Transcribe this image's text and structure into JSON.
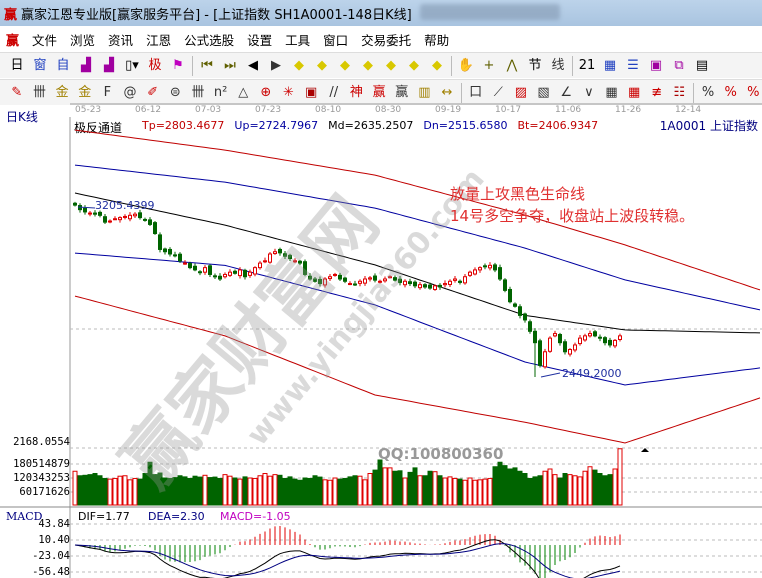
{
  "window": {
    "logo": "赢",
    "title": "赢家江恩专业版[赢家服务平台] - [上证指数  SH1A0001-148日K线]"
  },
  "menu": [
    "文件",
    "浏览",
    "资讯",
    "江恩",
    "公式选股",
    "设置",
    "工具",
    "窗口",
    "交易委托",
    "帮助"
  ],
  "toolbar1": [
    {
      "icon": "period-day",
      "glyph": "日▾"
    },
    {
      "icon": "window",
      "glyph": "窗"
    },
    {
      "icon": "self",
      "glyph": "自"
    },
    {
      "icon": "chart-3",
      "glyph": "▟"
    },
    {
      "icon": "chart-9",
      "glyph": "▟"
    },
    {
      "icon": "candle",
      "glyph": "▯▾"
    },
    {
      "icon": "extreme",
      "glyph": "极"
    },
    {
      "icon": "flag",
      "glyph": "⚑"
    },
    {
      "icon": "first",
      "glyph": "⏮"
    },
    {
      "icon": "last",
      "glyph": "⏭"
    },
    {
      "icon": "left",
      "glyph": "◀"
    },
    {
      "icon": "right",
      "glyph": "▶"
    },
    {
      "icon": "diamond-left",
      "glyph": "◆"
    },
    {
      "icon": "diamond-right",
      "glyph": "◆"
    },
    {
      "icon": "diamond-h",
      "glyph": "◆"
    },
    {
      "icon": "diamond-x",
      "glyph": "◆"
    },
    {
      "icon": "diamond-a",
      "glyph": "◆"
    },
    {
      "icon": "diamond-b",
      "glyph": "◆"
    },
    {
      "icon": "diamond-c",
      "glyph": "◆"
    },
    {
      "icon": "hand",
      "glyph": "✋"
    },
    {
      "icon": "crosshair",
      "glyph": "+"
    },
    {
      "icon": "line-tool",
      "glyph": "⋀"
    },
    {
      "icon": "section",
      "glyph": "节"
    },
    {
      "icon": "line-text",
      "glyph": "线"
    },
    {
      "icon": "calendar",
      "glyph": "21"
    },
    {
      "icon": "calculator",
      "glyph": "▦"
    },
    {
      "icon": "notes",
      "glyph": "☰"
    },
    {
      "icon": "save",
      "glyph": "▣"
    },
    {
      "icon": "network",
      "glyph": "⧉"
    },
    {
      "icon": "computer",
      "glyph": "▤"
    }
  ],
  "toolbar2": [
    {
      "icon": "pen",
      "glyph": "✎"
    },
    {
      "icon": "bars",
      "glyph": "卌"
    },
    {
      "icon": "gold-1",
      "glyph": "金"
    },
    {
      "icon": "gold-2",
      "glyph": "金"
    },
    {
      "icon": "f-line",
      "glyph": "F"
    },
    {
      "icon": "spiral",
      "glyph": "@"
    },
    {
      "icon": "ruler-pen",
      "glyph": "✐"
    },
    {
      "icon": "circle-grid",
      "glyph": "⊜"
    },
    {
      "icon": "bars-2",
      "glyph": "卌"
    },
    {
      "icon": "n2",
      "glyph": "n²"
    },
    {
      "icon": "triangle",
      "glyph": "△"
    },
    {
      "icon": "target",
      "glyph": "⊕"
    },
    {
      "icon": "star",
      "glyph": "✳"
    },
    {
      "icon": "square-grid",
      "glyph": "▣"
    },
    {
      "icon": "slash",
      "glyph": "//"
    },
    {
      "icon": "god",
      "glyph": "神"
    },
    {
      "icon": "win",
      "glyph": "赢"
    },
    {
      "icon": "win-2",
      "glyph": "赢"
    },
    {
      "icon": "grid",
      "glyph": "▥"
    },
    {
      "icon": "width",
      "glyph": "↔"
    },
    {
      "icon": "box",
      "glyph": "口"
    },
    {
      "icon": "fan",
      "glyph": "⟋"
    },
    {
      "icon": "box-fan",
      "glyph": "▨"
    },
    {
      "icon": "box-fan-2",
      "glyph": "▧"
    },
    {
      "icon": "angle",
      "glyph": "∠"
    },
    {
      "icon": "vee",
      "glyph": "∨"
    },
    {
      "icon": "grid-2",
      "glyph": "▦"
    },
    {
      "icon": "grid-3",
      "glyph": "▦"
    },
    {
      "icon": "parallel",
      "glyph": "≢"
    },
    {
      "icon": "list",
      "glyph": "☷"
    },
    {
      "icon": "percent-red",
      "glyph": "%"
    },
    {
      "icon": "percent",
      "glyph": "%"
    },
    {
      "icon": "percent-line",
      "glyph": "%"
    }
  ],
  "dates": [
    "05-23",
    "06-12",
    "07-03",
    "07-23",
    "08-10",
    "08-30",
    "09-19",
    "10-17",
    "11-06",
    "11-26",
    "12-14"
  ],
  "chart": {
    "period_label": "日K线",
    "indicator": "极反通道",
    "tp": "Tp=2803.4677",
    "up": "Up=2724.7967",
    "md": "Md=2635.2507",
    "dn": "Dn=2515.6580",
    "bt": "Bt=2406.9347",
    "symbol": "1A0001  上证指数",
    "high_label": "3205.4399",
    "low_label": "2449.2000",
    "note_line1": "放量上攻黑色生命线",
    "note_line2": "14号多空争夺，收盘站上波段转稳。",
    "colors": {
      "up": "#e00000",
      "down": "#006400",
      "tp": "#c00000",
      "up_line": "#0000a0",
      "md": "#000000",
      "dn": "#0000a0",
      "bt": "#c00000"
    }
  },
  "watermark": {
    "big": "赢家财富网",
    "url": "www.yingjia360.com",
    "qq": "QQ:100800360"
  },
  "volume": {
    "labels": [
      "2168.0554",
      "180514879",
      "120343253",
      "60171626"
    ]
  },
  "macd": {
    "title": "MACD",
    "dif": "DIF=1.77",
    "dea": "DEA=2.30",
    "macd": "MACD=-1.05",
    "labels": [
      "43.84",
      "10.40",
      "-23.04",
      "-56.48"
    ]
  },
  "chart_data": {
    "type": "candlestick",
    "closes": [
      3205,
      3185,
      3175,
      3170,
      3165,
      3160,
      3130,
      3135,
      3145,
      3150,
      3155,
      3160,
      3165,
      3150,
      3140,
      3120,
      3080,
      3010,
      3000,
      2990,
      2985,
      2960,
      2950,
      2930,
      2920,
      2910,
      2930,
      2900,
      2890,
      2880,
      2900,
      2910,
      2905,
      2920,
      2890,
      2910,
      2930,
      2950,
      2960,
      2990,
      3000,
      2995,
      2980,
      2970,
      2960,
      2950,
      2900,
      2880,
      2870,
      2860,
      2880,
      2890,
      2900,
      2880,
      2870,
      2860,
      2855,
      2870,
      2880,
      2885,
      2875,
      2870,
      2880,
      2890,
      2875,
      2865,
      2870,
      2860,
      2850,
      2855,
      2845,
      2840,
      2850,
      2845,
      2860,
      2870,
      2880,
      2865,
      2890,
      2910,
      2920,
      2930,
      2935,
      2940,
      2920,
      2880,
      2830,
      2780,
      2760,
      2720,
      2700,
      2650,
      2600,
      2500,
      2560,
      2620,
      2640,
      2600,
      2560,
      2570,
      2590,
      2620,
      2630,
      2640,
      2630,
      2620,
      2600,
      2590,
      2610,
      2630
    ],
    "volumes_m": [
      150,
      130,
      132,
      135,
      140,
      130,
      118,
      115,
      118,
      128,
      130,
      112,
      118,
      115,
      140,
      190,
      135,
      142,
      120,
      118,
      122,
      130,
      125,
      118,
      128,
      124,
      132,
      122,
      124,
      118,
      135,
      128,
      120,
      115,
      125,
      120,
      118,
      130,
      140,
      128,
      135,
      132,
      118,
      125,
      115,
      110,
      120,
      118,
      130,
      124,
      112,
      110,
      120,
      115,
      118,
      125,
      130,
      128,
      112,
      140,
      155,
      200,
      165,
      165,
      150,
      152,
      120,
      145,
      165,
      130,
      130,
      150,
      148,
      130,
      120,
      125,
      118,
      115,
      110,
      120,
      110,
      112,
      115,
      118,
      170,
      190,
      175,
      160,
      165,
      150,
      140,
      118,
      125,
      130,
      150,
      160,
      135,
      120,
      140,
      135,
      130,
      125,
      150,
      170,
      155,
      140,
      130,
      135,
      160,
      250
    ],
    "channel_index": [
      0,
      30,
      60,
      90,
      110,
      137
    ],
    "tp_line": [
      3535,
      3447,
      3337,
      3161,
      3030,
      2832
    ],
    "up_line": [
      3381,
      3306,
      3192,
      3016,
      2876,
      2744
    ],
    "md_line": [
      3258,
      3117,
      2942,
      2720,
      2656,
      2643
    ],
    "dn_line": [
      2994,
      2940,
      2766,
      2515,
      2414,
      2489
    ],
    "bt_line": [
      2805,
      2630,
      2370,
      2250,
      2159,
      2357
    ],
    "price_high": 3205.4399,
    "price_low": 2449.2
  }
}
